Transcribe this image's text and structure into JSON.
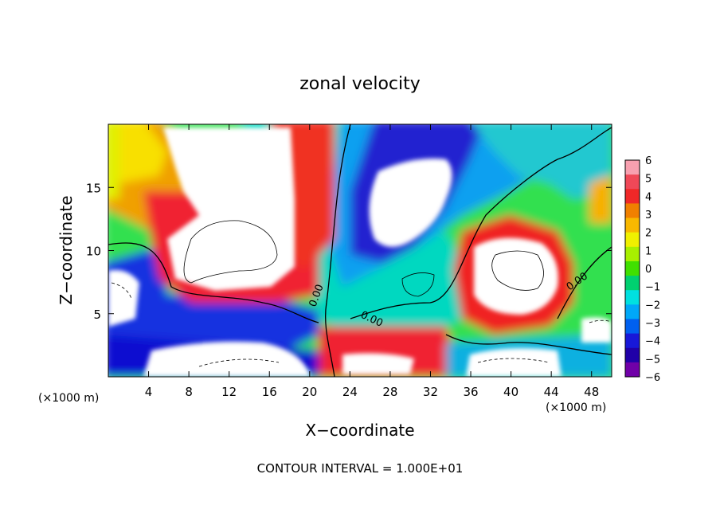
{
  "chart_data": {
    "type": "heatmap",
    "title": "zonal velocity",
    "xlabel": "X−coordinate",
    "ylabel": "Z−coordinate",
    "x_unit_left": "(×1000 m)",
    "x_unit_right": "(×1000 m)",
    "xlim": [
      0,
      50
    ],
    "ylim": [
      0,
      20
    ],
    "x_ticks": [
      4,
      8,
      12,
      16,
      20,
      24,
      28,
      32,
      36,
      40,
      44,
      48
    ],
    "y_ticks": [
      5,
      10,
      15
    ],
    "colorbar": {
      "ticks": [
        "6",
        "5",
        "4",
        "3",
        "2",
        "1",
        "0",
        "−1",
        "−2",
        "−3",
        "−4",
        "−5",
        "−6"
      ],
      "colors": [
        "#f8a0b0",
        "#f04858",
        "#f02828",
        "#f08000",
        "#f8b800",
        "#f0f000",
        "#a8f000",
        "#40e000",
        "#00d070",
        "#00e0e0",
        "#00a8f8",
        "#0060f0",
        "#1818d8",
        "#2000a8",
        "#7000a8"
      ],
      "range": [
        -6,
        6
      ]
    },
    "contour_labels": [
      "0.00",
      "0.00",
      "0.00"
    ],
    "footer": "CONTOUR INTERVAL = 1.000E+01"
  }
}
